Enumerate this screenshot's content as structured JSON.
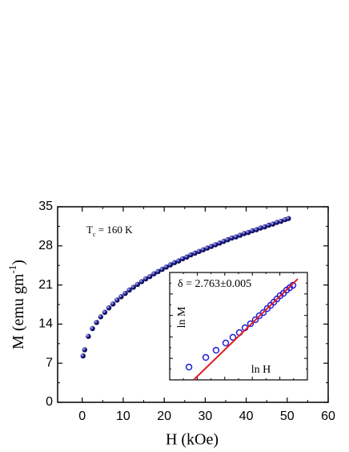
{
  "chart_data": [
    {
      "type": "scatter",
      "xlabel": "H (kOe)",
      "ylabel": [
        "M (emu gm",
        "-1",
        ")"
      ],
      "annotation": [
        "T",
        "c",
        " = 160 K"
      ],
      "color": "#1a1a8c",
      "x": [
        0.2,
        0.6,
        1.5,
        2.5,
        3.5,
        4.5,
        5.5,
        6.5,
        7.5,
        8.5,
        9.5,
        10.5,
        11.5,
        12.5,
        13.5,
        14.5,
        15.5,
        16.5,
        17.5,
        18.5,
        19.5,
        20.5,
        21.5,
        22.5,
        23.5,
        24.5,
        25.5,
        26.5,
        27.5,
        28.5,
        29.5,
        30.5,
        31.5,
        32.5,
        33.5,
        34.5,
        35.5,
        36.5,
        37.5,
        38.5,
        39.5,
        40.5,
        41.5,
        42.5,
        43.5,
        44.5,
        45.5,
        46.5,
        47.5,
        48.5,
        49.5,
        50.3
      ],
      "values": [
        8.3,
        9.4,
        11.8,
        13.2,
        14.3,
        15.3,
        16.1,
        16.9,
        17.6,
        18.3,
        18.9,
        19.5,
        20.1,
        20.6,
        21.1,
        21.6,
        22.1,
        22.5,
        23.0,
        23.4,
        23.8,
        24.2,
        24.6,
        25.0,
        25.3,
        25.7,
        26.0,
        26.4,
        26.7,
        27.0,
        27.3,
        27.6,
        27.9,
        28.2,
        28.5,
        28.8,
        29.1,
        29.4,
        29.6,
        29.9,
        30.2,
        30.4,
        30.7,
        30.9,
        31.2,
        31.4,
        31.7,
        31.9,
        32.2,
        32.4,
        32.7,
        32.9
      ],
      "xlim": [
        -6,
        60
      ],
      "xticks": [
        0,
        10,
        20,
        30,
        40,
        50,
        60
      ],
      "ylim": [
        0,
        35
      ],
      "yticks": [
        0,
        7,
        14,
        21,
        28,
        35
      ]
    },
    {
      "type": "scatter",
      "xlabel": "ln H",
      "ylabel": "ln M",
      "annotation": "δ = 2.763±0.005",
      "xlim": [
        0,
        10
      ],
      "ylim": [
        0,
        10
      ],
      "series": [
        {
          "color": "#1f1fd6",
          "x": [
            1.4,
            2.62,
            3.37,
            4.07,
            4.59,
            5.06,
            5.47,
            5.87,
            6.22,
            6.51,
            6.8,
            7.09,
            7.33,
            7.56,
            7.79,
            8.02,
            8.26,
            8.49,
            8.72,
            8.95
          ],
          "values": [
            1.19,
            2.09,
            2.76,
            3.43,
            3.96,
            4.4,
            4.85,
            5.22,
            5.6,
            5.97,
            6.27,
            6.64,
            6.94,
            7.24,
            7.54,
            7.84,
            8.06,
            8.36,
            8.58,
            8.81
          ]
        },
        {
          "color": "#e02020",
          "x": [
            1.74,
            9.3
          ],
          "values": [
            0,
            9.4
          ]
        }
      ]
    }
  ]
}
